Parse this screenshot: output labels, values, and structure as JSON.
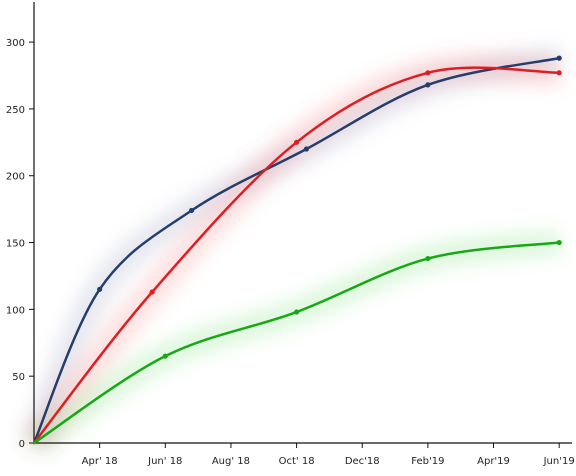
{
  "chart_data": {
    "type": "line",
    "title": "",
    "xlabel": "",
    "ylabel": "",
    "x_tick_labels": [
      "Apr' 18",
      "Jun' 18",
      "Aug' 18",
      "Oct' 18",
      "Dec'18",
      "Feb'19",
      "Apr'19",
      "Jun'19"
    ],
    "x_tick_months": [
      3,
      5,
      7,
      9,
      11,
      13,
      15,
      17
    ],
    "xlim": [
      1,
      18
    ],
    "ylim": [
      0,
      330
    ],
    "y_ticks": [
      0,
      50,
      100,
      150,
      200,
      250,
      300
    ],
    "grid": false,
    "legend": "none",
    "smooth": true,
    "series": [
      {
        "color": "#263e6b",
        "glow": "#8890b8",
        "x": [
          1,
          3,
          5.8,
          9.3,
          13,
          17
        ],
        "y": [
          0,
          115,
          174,
          220,
          268,
          288
        ]
      },
      {
        "color": "#dd1f24",
        "glow": "#ff6a6a",
        "x": [
          1,
          4.6,
          9,
          13,
          17
        ],
        "y": [
          0,
          113,
          225,
          277,
          277
        ]
      },
      {
        "color": "#17a815",
        "glow": "#66d966",
        "x": [
          1,
          5,
          9,
          13,
          17
        ],
        "y": [
          0,
          65,
          98,
          138,
          150
        ]
      }
    ]
  }
}
